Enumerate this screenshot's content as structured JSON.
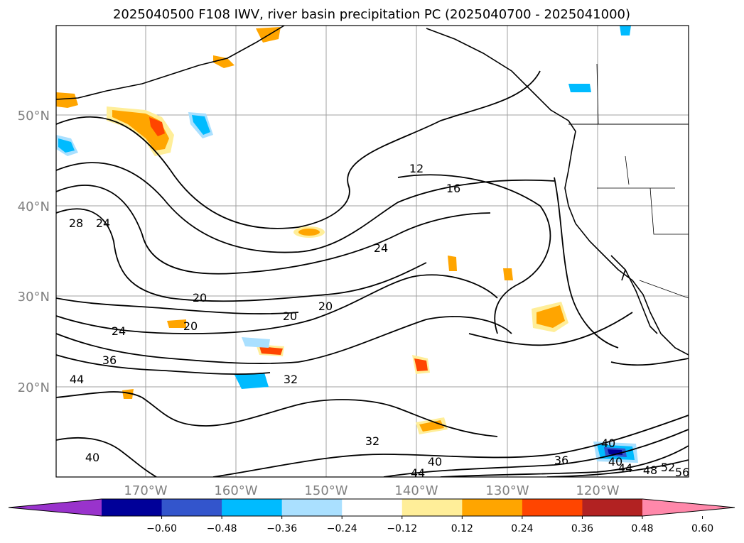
{
  "title": "2025040500 F108 IWV, river basin precipitation PC (2025040700 - 2025041000)",
  "map": {
    "lat_labels": [
      "50°N",
      "40°N",
      "30°N",
      "20°N"
    ],
    "lon_labels": [
      "170°W",
      "160°W",
      "150°W",
      "140°W",
      "130°W",
      "120°W"
    ],
    "grid": true,
    "colors": {
      "grid": "#a0a0a0",
      "contour": "#000000",
      "coast": "#000000"
    },
    "contour_labels": [
      "12",
      "16",
      "20",
      "20",
      "20",
      "20",
      "24",
      "24",
      "28",
      "32",
      "32",
      "36",
      "36",
      "40",
      "40",
      "40",
      "40",
      "44",
      "44",
      "44",
      "48",
      "52",
      "56",
      "24"
    ]
  },
  "colorbar": {
    "colors": [
      "#9933cc",
      "#000099",
      "#3355cc",
      "#00bbff",
      "#aae0ff",
      "#ffffff",
      "#ffee99",
      "#ffa500",
      "#ff4500",
      "#b22222",
      "#ff88aa"
    ],
    "ticks": [
      "−0.60",
      "−0.48",
      "−0.36",
      "−0.24",
      "−0.12",
      "0.12",
      "0.24",
      "0.36",
      "0.48",
      "0.60"
    ],
    "extend": "both"
  }
}
